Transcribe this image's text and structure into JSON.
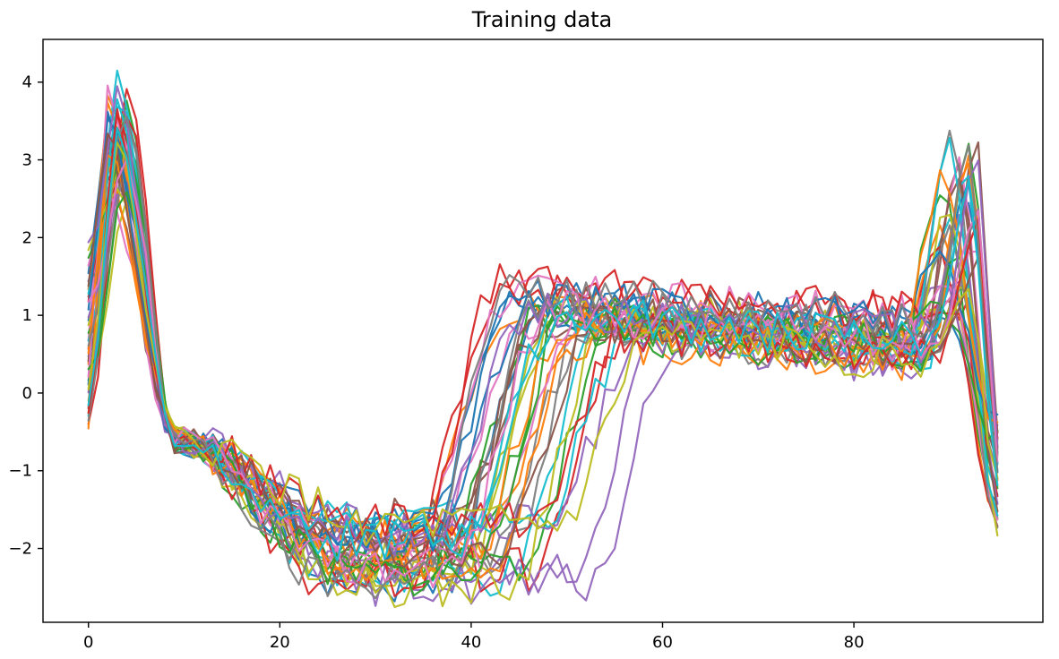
{
  "chart_data": {
    "type": "line",
    "title": "Training data",
    "xlabel": "",
    "ylabel": "",
    "xlim": [
      -4.75,
      99.75
    ],
    "ylim": [
      -2.95,
      4.55
    ],
    "xticks": [
      0,
      20,
      40,
      60,
      80
    ],
    "yticks": [
      -2,
      -1,
      0,
      1,
      2,
      3,
      4
    ],
    "xtick_labels": [
      "0",
      "20",
      "40",
      "60",
      "80"
    ],
    "ytick_labels": [
      "−2",
      "−1",
      "0",
      "1",
      "2",
      "3",
      "4"
    ],
    "grid": false,
    "legend": "none",
    "n_points": 96,
    "n_series": 40,
    "series_colors": [
      "#1f77b4",
      "#ff7f0e",
      "#2ca02c",
      "#d62728",
      "#9467bd",
      "#8c564b",
      "#e377c2",
      "#7f7f7f",
      "#bcbd22",
      "#17becf"
    ],
    "series_shape_params": [
      {
        "peak": 3.4,
        "trough_x": 27,
        "rise_x": 37,
        "plateau": 0.55,
        "end_peak": 2.6,
        "seed": 1
      },
      {
        "peak": 3.8,
        "trough_x": 28,
        "rise_x": 34,
        "plateau": 0.75,
        "end_peak": 3.0,
        "seed": 2
      },
      {
        "peak": 3.6,
        "trough_x": 26,
        "rise_x": 40,
        "plateau": 0.45,
        "end_peak": 3.3,
        "seed": 3
      },
      {
        "peak": 3.9,
        "trough_x": 29,
        "rise_x": 33,
        "plateau": 0.95,
        "end_peak": 1.1,
        "seed": 4
      },
      {
        "peak": 2.9,
        "trough_x": 30,
        "rise_x": 50,
        "plateau": 0.35,
        "end_peak": 1.6,
        "seed": 5
      },
      {
        "peak": 2.7,
        "trough_x": 25,
        "rise_x": 38,
        "plateau": 0.6,
        "end_peak": 2.8,
        "seed": 6
      },
      {
        "peak": 3.3,
        "trough_x": 27,
        "rise_x": 36,
        "plateau": 0.5,
        "end_peak": 2.9,
        "seed": 7
      },
      {
        "peak": 3.0,
        "trough_x": 28,
        "rise_x": 42,
        "plateau": 0.4,
        "end_peak": 3.2,
        "seed": 8
      },
      {
        "peak": 2.5,
        "trough_x": 26,
        "rise_x": 39,
        "plateau": 0.7,
        "end_peak": 1.2,
        "seed": 9
      },
      {
        "peak": 4.2,
        "trough_x": 27,
        "rise_x": 44,
        "plateau": 0.55,
        "end_peak": 2.4,
        "seed": 10
      },
      {
        "peak": 3.5,
        "trough_x": 29,
        "rise_x": 35,
        "plateau": 0.85,
        "end_peak": 0.9,
        "seed": 11
      },
      {
        "peak": 3.7,
        "trough_x": 28,
        "rise_x": 41,
        "plateau": 0.3,
        "end_peak": 2.2,
        "seed": 12
      },
      {
        "peak": 3.2,
        "trough_x": 24,
        "rise_x": 37,
        "plateau": 0.65,
        "end_peak": 2.7,
        "seed": 13
      },
      {
        "peak": 3.6,
        "trough_x": 27,
        "rise_x": 46,
        "plateau": 0.4,
        "end_peak": 1.8,
        "seed": 14
      },
      {
        "peak": 2.8,
        "trough_x": 30,
        "rise_x": 52,
        "plateau": 0.3,
        "end_peak": 1.4,
        "seed": 15
      },
      {
        "peak": 3.1,
        "trough_x": 26,
        "rise_x": 38,
        "plateau": 0.8,
        "end_peak": 3.1,
        "seed": 16
      },
      {
        "peak": 2.6,
        "trough_x": 25,
        "rise_x": 34,
        "plateau": 0.9,
        "end_peak": 2.0,
        "seed": 17
      },
      {
        "peak": 3.4,
        "trough_x": 28,
        "rise_x": 43,
        "plateau": 0.5,
        "end_peak": 2.5,
        "seed": 18
      },
      {
        "peak": 3.0,
        "trough_x": 27,
        "rise_x": 39,
        "plateau": 0.6,
        "end_peak": 1.3,
        "seed": 19
      },
      {
        "peak": 3.8,
        "trough_x": 29,
        "rise_x": 47,
        "plateau": 0.45,
        "end_peak": 2.9,
        "seed": 20
      },
      {
        "peak": 3.5,
        "trough_x": 26,
        "rise_x": 36,
        "plateau": 0.7,
        "end_peak": 2.6,
        "seed": 21
      },
      {
        "peak": 2.9,
        "trough_x": 28,
        "rise_x": 40,
        "plateau": 0.55,
        "end_peak": 3.0,
        "seed": 22
      },
      {
        "peak": 3.3,
        "trough_x": 27,
        "rise_x": 45,
        "plateau": 0.35,
        "end_peak": 1.7,
        "seed": 23
      },
      {
        "peak": 3.7,
        "trough_x": 25,
        "rise_x": 33,
        "plateau": 1.0,
        "end_peak": 1.0,
        "seed": 24
      },
      {
        "peak": 2.7,
        "trough_x": 30,
        "rise_x": 48,
        "plateau": 0.4,
        "end_peak": 2.3,
        "seed": 25
      },
      {
        "peak": 3.2,
        "trough_x": 27,
        "rise_x": 38,
        "plateau": 0.65,
        "end_peak": 2.8,
        "seed": 26
      },
      {
        "peak": 3.9,
        "trough_x": 28,
        "rise_x": 41,
        "plateau": 0.5,
        "end_peak": 1.5,
        "seed": 27
      },
      {
        "peak": 3.1,
        "trough_x": 26,
        "rise_x": 37,
        "plateau": 0.75,
        "end_peak": 2.1,
        "seed": 28
      },
      {
        "peak": 2.8,
        "trough_x": 29,
        "rise_x": 44,
        "plateau": 0.45,
        "end_peak": 2.4,
        "seed": 29
      },
      {
        "peak": 3.6,
        "trough_x": 27,
        "rise_x": 39,
        "plateau": 0.6,
        "end_peak": 3.2,
        "seed": 30
      },
      {
        "peak": 3.4,
        "trough_x": 25,
        "rise_x": 35,
        "plateau": 0.85,
        "end_peak": 1.9,
        "seed": 31
      },
      {
        "peak": 3.0,
        "trough_x": 28,
        "rise_x": 42,
        "plateau": 0.5,
        "end_peak": 2.7,
        "seed": 32
      },
      {
        "peak": 2.6,
        "trough_x": 27,
        "rise_x": 40,
        "plateau": 0.55,
        "end_peak": 1.1,
        "seed": 33
      },
      {
        "peak": 3.5,
        "trough_x": 29,
        "rise_x": 46,
        "plateau": 0.4,
        "end_peak": 2.2,
        "seed": 34
      },
      {
        "peak": 3.8,
        "trough_x": 26,
        "rise_x": 36,
        "plateau": 0.7,
        "end_peak": 2.9,
        "seed": 35
      },
      {
        "peak": 3.2,
        "trough_x": 28,
        "rise_x": 43,
        "plateau": 0.45,
        "end_peak": 1.6,
        "seed": 36
      },
      {
        "peak": 2.9,
        "trough_x": 27,
        "rise_x": 38,
        "plateau": 0.65,
        "end_peak": 2.5,
        "seed": 37
      },
      {
        "peak": 3.6,
        "trough_x": 25,
        "rise_x": 34,
        "plateau": 0.9,
        "end_peak": 3.1,
        "seed": 38
      },
      {
        "peak": 3.1,
        "trough_x": 30,
        "rise_x": 49,
        "plateau": 0.35,
        "end_peak": 1.4,
        "seed": 39
      },
      {
        "peak": 3.3,
        "trough_x": 27,
        "rise_x": 39,
        "plateau": 0.6,
        "end_peak": 2.6,
        "seed": 40
      }
    ]
  }
}
